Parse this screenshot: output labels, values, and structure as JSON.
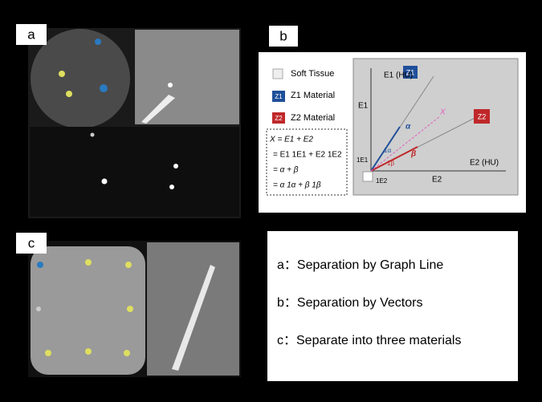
{
  "panels": {
    "a": {
      "label": "a"
    },
    "b": {
      "label": "b",
      "legend": [
        "Soft Tissue",
        "Z1 Material",
        "Z2 Material"
      ],
      "legend_icons": [
        "Z1",
        "Z2"
      ],
      "axes": {
        "y_label": "E1 (HU)",
        "y_tick": "E1",
        "x_label": "E2 (HU)",
        "x_tick": "E2"
      },
      "markers": [
        "Z1",
        "Z2"
      ],
      "vector_labels": {
        "x": "X",
        "alpha": "α",
        "beta": "β",
        "unit_e1": "1E1",
        "unit_e2": "1E2",
        "unit_alpha": "1α",
        "unit_beta": "1β"
      },
      "equations": [
        "X = E1 + E2",
        "= E1 1E1 + E2 1E2",
        "= α + β",
        "= α 1α + β 1β"
      ]
    },
    "c": {
      "label": "c"
    }
  },
  "descriptions": [
    "a：Separation by Graph Line",
    "b：Separation by Vectors",
    "c：Separate into three materials"
  ]
}
